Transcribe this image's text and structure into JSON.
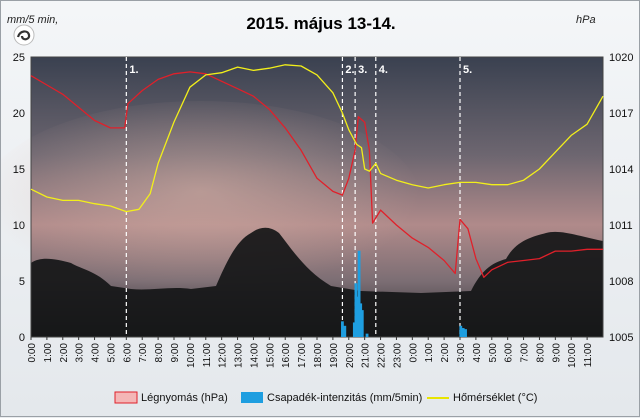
{
  "chart_data": {
    "type": "line",
    "title": "2015. május 13-14.",
    "y_left_unit": "mm/5 min,",
    "y_right_unit": "hPa",
    "y_left_ticks": [
      "0",
      "5",
      "10",
      "15",
      "20",
      "25"
    ],
    "y_right_ticks": [
      "1005",
      "1008",
      "1011",
      "1014",
      "1017",
      "1020"
    ],
    "ylim_left": [
      0,
      25
    ],
    "ylim_right": [
      1005,
      1020
    ],
    "x_ticks": [
      "0:00",
      "1:00",
      "2:00",
      "3:00",
      "4:00",
      "5:00",
      "6:00",
      "7:00",
      "8:00",
      "9:00",
      "10:00",
      "11:00",
      "12:00",
      "13:00",
      "14:00",
      "15:00",
      "16:00",
      "17:00",
      "18:00",
      "19:00",
      "20:00",
      "21:00",
      "22:00",
      "23:00",
      "0:00",
      "1:00",
      "2:00",
      "3:00",
      "4:00",
      "5:00",
      "6:00",
      "7:00",
      "8:00",
      "9:00",
      "10:00",
      "11:00"
    ],
    "xlim_hours": [
      0,
      36
    ],
    "events": [
      {
        "label": "1.",
        "hour": 6.0
      },
      {
        "label": "2.",
        "hour": 19.6
      },
      {
        "label": "3.",
        "hour": 20.4
      },
      {
        "label": "4.",
        "hour": 21.7
      },
      {
        "label": "5.",
        "hour": 27.0
      }
    ],
    "series": [
      {
        "name": "Légnyomás (hPa)",
        "color": "#e0202a",
        "axis": "right",
        "x": [
          0,
          1,
          2,
          3,
          4,
          5,
          5.9,
          6.1,
          7,
          8,
          9,
          10,
          11,
          12,
          13,
          14,
          15,
          16,
          17,
          18,
          19,
          19.6,
          20,
          20.4,
          20.6,
          21,
          21.3,
          21.5,
          22,
          23,
          24,
          25,
          26,
          26.7,
          27,
          27.5,
          28,
          28.5,
          29,
          30,
          31,
          32,
          33,
          34,
          35,
          36
        ],
        "values": [
          1019,
          1018.5,
          1018,
          1017.3,
          1016.6,
          1016.2,
          1016.2,
          1017.5,
          1018.2,
          1018.8,
          1019.1,
          1019.2,
          1019.1,
          1018.7,
          1018.3,
          1017.9,
          1017.2,
          1016.2,
          1015,
          1013.5,
          1012.8,
          1012.6,
          1013.5,
          1015,
          1016.8,
          1016.5,
          1015,
          1011.1,
          1011.8,
          1011,
          1010.3,
          1009.8,
          1009.1,
          1008.4,
          1011.3,
          1010.8,
          1009.2,
          1008.2,
          1008.6,
          1009,
          1009.1,
          1009.2,
          1009.6,
          1009.6,
          1009.7,
          1009.7
        ]
      },
      {
        "name": "Csapadék-intenzitás (mm/5min)",
        "color": "#1e9ee0",
        "axis": "left",
        "x": [
          19.6,
          19.75,
          20.35,
          20.45,
          20.55,
          20.65,
          20.75,
          20.85,
          21.15,
          27.05,
          27.2,
          27.35
        ],
        "values": [
          1.4,
          1.0,
          1.3,
          4.8,
          3.6,
          7.7,
          3.0,
          2.4,
          0.3,
          1.0,
          0.8,
          0.7
        ]
      },
      {
        "name": "Hőmérséklet (°C)",
        "color": "#f2ef1a",
        "axis": "left",
        "x": [
          0,
          1,
          2,
          3,
          4,
          5,
          6,
          6.8,
          7.5,
          8,
          9,
          10,
          11,
          12,
          13,
          14,
          15,
          16,
          17,
          18,
          19,
          19.6,
          20,
          20.5,
          20.8,
          21,
          21.3,
          21.7,
          22,
          23,
          24,
          25,
          26,
          27,
          28,
          29,
          30,
          31,
          32,
          33,
          34,
          35,
          36
        ],
        "values": [
          13.2,
          12.5,
          12.2,
          12.2,
          11.9,
          11.7,
          11.2,
          11.4,
          12.8,
          15.5,
          19.2,
          22.3,
          23.4,
          23.6,
          24.1,
          23.8,
          24,
          24.3,
          24.2,
          23.4,
          21.8,
          20,
          18.5,
          17.2,
          16.9,
          15,
          14.8,
          15.5,
          14.6,
          14,
          13.6,
          13.3,
          13.6,
          13.8,
          13.8,
          13.6,
          13.6,
          14,
          15,
          16.5,
          18,
          19,
          21.5
        ]
      }
    ],
    "legend_position": "bottom",
    "grid": false
  }
}
